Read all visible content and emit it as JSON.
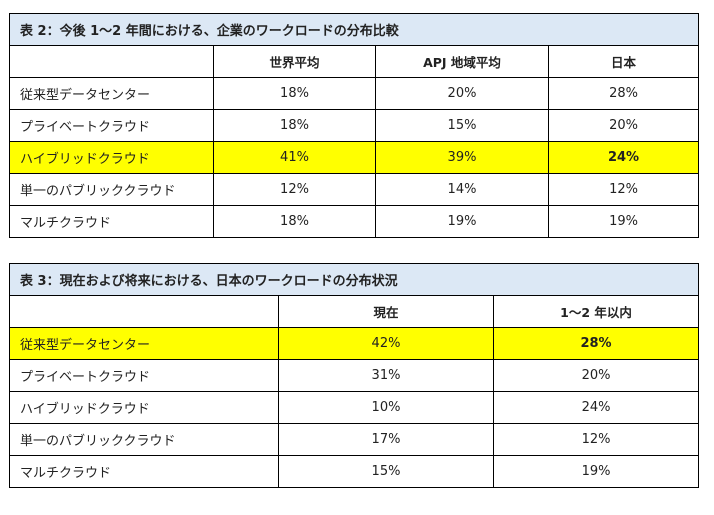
{
  "table2": {
    "title": "表 2：今後 1～2 年間における、企業のワークロードの分布比較",
    "headers": [
      "",
      "世界平均",
      "APJ 地域平均",
      "日本"
    ],
    "rows": [
      {
        "label": "従来型データセンター",
        "values": [
          "18%",
          "20%",
          "28%"
        ]
      },
      {
        "label": "プライベートクラウド",
        "values": [
          "18%",
          "15%",
          "20%"
        ]
      },
      {
        "label": "ハイブリッドクラウド",
        "values": [
          "41%",
          "39%",
          "24%"
        ],
        "highlighted": true
      },
      {
        "label": "単一のパブリッククラウド",
        "values": [
          "12%",
          "14%",
          "12%"
        ]
      },
      {
        "label": "マルチクラウド",
        "values": [
          "18%",
          "19%",
          "19%"
        ]
      }
    ]
  },
  "table3": {
    "title": "表 3：現在および将来における、日本のワークロードの分布状況",
    "headers": [
      "",
      "現在",
      "1～2 年以内"
    ],
    "rows": [
      {
        "label": "従来型データセンター",
        "values": [
          "42%",
          "28%"
        ],
        "highlighted": true
      },
      {
        "label": "プライベートクラウド",
        "values": [
          "31%",
          "20%"
        ]
      },
      {
        "label": "ハイブリッドクラウド",
        "values": [
          "10%",
          "24%"
        ]
      },
      {
        "label": "単一のパブリッククラウド",
        "values": [
          "17%",
          "12%"
        ]
      },
      {
        "label": "マルチクラウド",
        "values": [
          "15%",
          "19%"
        ]
      }
    ]
  },
  "colors": {
    "title_bg": "#dce8f5",
    "highlight": "#ffff00"
  }
}
